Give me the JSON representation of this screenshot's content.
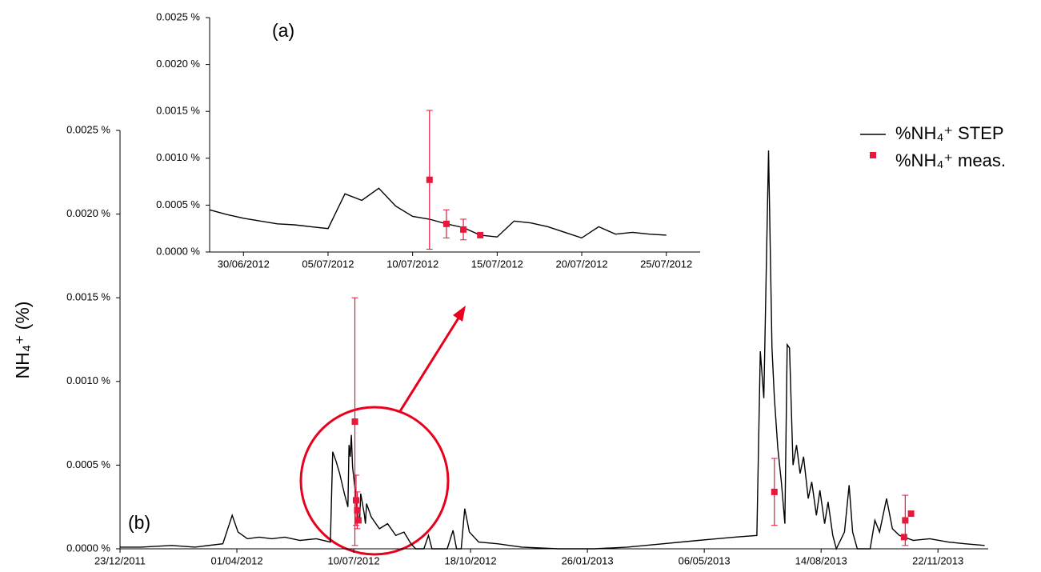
{
  "chart_data": [
    {
      "type": "line",
      "y_label": "NH₄⁺ (%)",
      "annotation": "(b)",
      "legend": "right",
      "xlim": [
        "23/12/2011",
        "04/01/2014"
      ],
      "xticks": [
        "23/12/2011",
        "01/04/2012",
        "10/07/2012",
        "18/10/2012",
        "26/01/2013",
        "06/05/2013",
        "14/08/2013",
        "22/11/2013"
      ],
      "ylim": [
        0,
        0.0025
      ],
      "yticks": [
        {
          "value": 0,
          "label": "0.0000 %"
        },
        {
          "value": 0.0005,
          "label": "0.0005 %"
        },
        {
          "value": 0.001,
          "label": "0.0010 %"
        },
        {
          "value": 0.0015,
          "label": "0.0015 %"
        },
        {
          "value": 0.002,
          "label": "0.0020 %"
        },
        {
          "value": 0.0025,
          "label": "0.0025 %"
        }
      ],
      "series": [
        {
          "name": "%NH₄⁺ STEP",
          "color": "#000000",
          "style": "line",
          "x": [
            "23/12/2011",
            "10/01/2012",
            "05/02/2012",
            "25/02/2012",
            "20/03/2012",
            "28/03/2012",
            "02/04/2012",
            "10/04/2012",
            "20/04/2012",
            "01/05/2012",
            "12/05/2012",
            "25/05/2012",
            "08/06/2012",
            "20/06/2012",
            "22/06/2012",
            "25/06/2012",
            "28/06/2012",
            "02/07/2012",
            "05/07/2012",
            "06/07/2012",
            "07/07/2012",
            "08/07/2012",
            "09/07/2012",
            "12/07/2012",
            "14/07/2012",
            "15/07/2012",
            "16/07/2012",
            "19/07/2012",
            "20/07/2012",
            "21/07/2012",
            "25/07/2012",
            "01/08/2012",
            "08/08/2012",
            "15/08/2012",
            "22/08/2012",
            "28/08/2012",
            "01/09/2012",
            "08/09/2012",
            "12/09/2012",
            "15/09/2012",
            "28/09/2012",
            "03/10/2012",
            "06/10/2012",
            "10/10/2012",
            "13/10/2012",
            "17/10/2012",
            "25/10/2012",
            "10/11/2012",
            "01/12/2012",
            "01/01/2013",
            "01/02/2013",
            "01/03/2013",
            "01/04/2013",
            "01/05/2013",
            "01/06/2013",
            "20/06/2013",
            "23/06/2013",
            "26/06/2013",
            "30/06/2013",
            "03/07/2013",
            "05/07/2013",
            "08/07/2013",
            "11/07/2013",
            "14/07/2013",
            "16/07/2013",
            "18/07/2013",
            "21/07/2013",
            "24/07/2013",
            "27/07/2013",
            "30/07/2013",
            "03/08/2013",
            "06/08/2013",
            "10/08/2013",
            "13/08/2013",
            "17/08/2013",
            "20/08/2013",
            "24/08/2013",
            "27/08/2013",
            "03/09/2013",
            "07/09/2013",
            "10/09/2013",
            "14/09/2013",
            "25/09/2013",
            "29/09/2013",
            "03/10/2013",
            "09/10/2013",
            "14/10/2013",
            "20/10/2013",
            "01/11/2013",
            "15/11/2013",
            "01/12/2013",
            "15/12/2013",
            "01/01/2014"
          ],
          "values": [
            1e-05,
            1e-05,
            2e-05,
            1e-05,
            3e-05,
            0.0002,
            0.0001,
            6e-05,
            7e-05,
            6e-05,
            7e-05,
            5e-05,
            6e-05,
            4e-05,
            0.00058,
            0.00052,
            0.00045,
            0.00033,
            0.00025,
            0.00062,
            0.00055,
            0.00068,
            0.00049,
            0.0003,
            0.00018,
            0.00016,
            0.00033,
            0.00021,
            0.00015,
            0.00027,
            0.00019,
            0.00012,
            0.00015,
            8e-05,
            0.0001,
            3e-05,
            0,
            0,
            8e-05,
            0,
            0,
            0.00011,
            0,
            0,
            0.00024,
            0.0001,
            4e-05,
            3e-05,
            1e-05,
            0,
            0,
            1e-05,
            3e-05,
            5e-05,
            7e-05,
            8e-05,
            0.00118,
            0.0009,
            0.00238,
            0.0012,
            0.0009,
            0.0006,
            0.0004,
            0.00015,
            0.00122,
            0.0012,
            0.0005,
            0.00062,
            0.00045,
            0.00055,
            0.0003,
            0.0004,
            0.0002,
            0.00035,
            0.00015,
            0.00028,
            8e-05,
            0,
            0.0001,
            0.00038,
            0.0001,
            0,
            0,
            0.00017,
            0.0001,
            0.0003,
            0.00012,
            8e-05,
            5e-05,
            6e-05,
            4e-05,
            3e-05,
            2e-05
          ]
        },
        {
          "name": "%NH₄⁺ meas.",
          "color": "#e8173c",
          "style": "markers",
          "x": [
            "11/07/2012",
            "12/07/2012",
            "13/07/2012",
            "14/07/2012",
            "05/07/2013",
            "24/10/2013",
            "25/10/2013",
            "30/10/2013"
          ],
          "values": [
            0.00076,
            0.00029,
            0.00023,
            0.00017,
            0.00034,
            7e-05,
            0.00017,
            0.00021
          ],
          "errors": [
            0.00074,
            0.00015,
            0.00011,
            null,
            0.0002,
            null,
            0.00015,
            null
          ]
        }
      ]
    },
    {
      "type": "line",
      "annotation": "(a)",
      "xlim": [
        "28/06/2012",
        "27/07/2012"
      ],
      "xticks": [
        "30/06/2012",
        "05/07/2012",
        "10/07/2012",
        "15/07/2012",
        "20/07/2012",
        "25/07/2012"
      ],
      "ylim": [
        0,
        0.0025
      ],
      "yticks": [
        {
          "value": 0,
          "label": "0.0000 %"
        },
        {
          "value": 0.0005,
          "label": "0.0005 %"
        },
        {
          "value": 0.001,
          "label": "0.0010 %"
        },
        {
          "value": 0.0015,
          "label": "0.0015 %"
        },
        {
          "value": 0.002,
          "label": "0.0020 %"
        },
        {
          "value": 0.0025,
          "label": "0.0025 %"
        }
      ],
      "series": [
        {
          "color": "#000000",
          "style": "line",
          "x": [
            "28/06/2012",
            "29/06/2012",
            "30/06/2012",
            "01/07/2012",
            "02/07/2012",
            "03/07/2012",
            "04/07/2012",
            "05/07/2012",
            "06/07/2012",
            "07/07/2012",
            "08/07/2012",
            "09/07/2012",
            "10/07/2012",
            "11/07/2012",
            "12/07/2012",
            "13/07/2012",
            "14/07/2012",
            "15/07/2012",
            "16/07/2012",
            "17/07/2012",
            "18/07/2012",
            "19/07/2012",
            "20/07/2012",
            "21/07/2012",
            "22/07/2012",
            "23/07/2012",
            "24/07/2012",
            "25/07/2012"
          ],
          "values": [
            0.00045,
            0.0004,
            0.00036,
            0.00033,
            0.0003,
            0.00029,
            0.00027,
            0.00025,
            0.00062,
            0.00055,
            0.00068,
            0.00049,
            0.00038,
            0.00035,
            0.0003,
            0.00026,
            0.00018,
            0.00016,
            0.00033,
            0.00031,
            0.00027,
            0.00021,
            0.00015,
            0.00027,
            0.00019,
            0.00021,
            0.00019,
            0.00018
          ]
        },
        {
          "color": "#e8173c",
          "style": "markers",
          "x": [
            "11/07/2012",
            "12/07/2012",
            "13/07/2012",
            "14/07/2012"
          ],
          "values": [
            0.00077,
            0.0003,
            0.00024,
            0.00018
          ],
          "errors": [
            0.00074,
            0.00015,
            0.00011,
            null
          ]
        }
      ]
    }
  ]
}
